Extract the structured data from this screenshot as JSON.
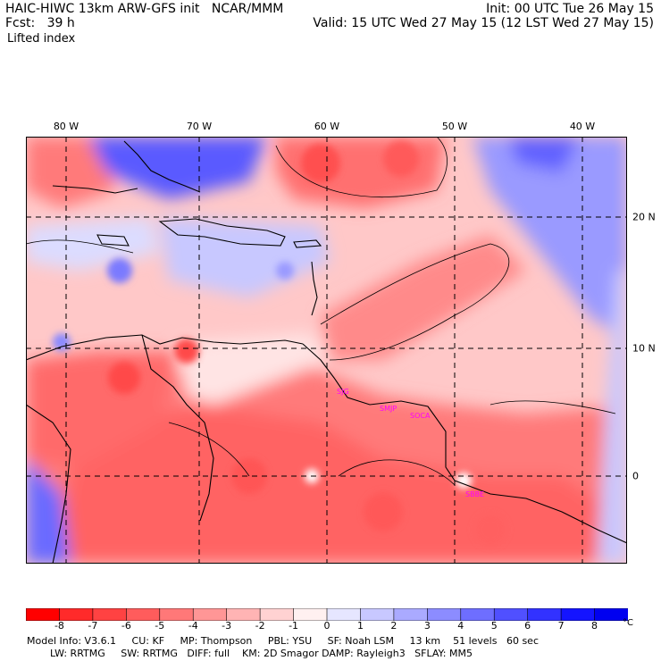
{
  "header": {
    "line1_left": "HAIC-HIWC 13km ARW-GFS init   NCAR/MMM",
    "line2_left": "Fcst:   39 h",
    "field_name": "Lifted index",
    "line1_right": "Init: 00 UTC Tue 26 May 15",
    "line2_right": "Valid: 15 UTC Wed 27 May 15 (12 LST Wed 27 May 15)"
  },
  "axes": {
    "lon_labels": [
      "80 W",
      "70 W",
      "60 W",
      "50 W",
      "40 W"
    ],
    "lat_labels": [
      "20 N",
      "10 N",
      "0"
    ]
  },
  "stations": [
    "SJG",
    "SMJP",
    "SOCA",
    "SBBE"
  ],
  "colorbar": {
    "labels": [
      "-8",
      "-7",
      "-6",
      "-5",
      "-4",
      "-3",
      "-2",
      "-1",
      "0",
      "1",
      "2",
      "3",
      "4",
      "5",
      "6",
      "7",
      "8"
    ],
    "unit": "°C",
    "colors": [
      "#ff0000",
      "#ff2a2a",
      "#ff4242",
      "#ff5c5c",
      "#ff7878",
      "#ff9696",
      "#ffb4b4",
      "#ffd2d2",
      "#fff0f0",
      "#e6e6ff",
      "#c8c8ff",
      "#aaaaff",
      "#8c8cff",
      "#6e6eff",
      "#5050ff",
      "#3232ff",
      "#1414ff",
      "#0000f0"
    ]
  },
  "footer": {
    "line1": "Model Info: V3.6.1     CU: KF     MP: Thompson     PBL: YSU     SF: Noah LSM     13 km    51 levels   60 sec",
    "line2": "LW: RRTMG     SW: RRTMG   DIFF: full    KM: 2D Smagor DAMP: Rayleigh3   SFLAY: MM5"
  }
}
